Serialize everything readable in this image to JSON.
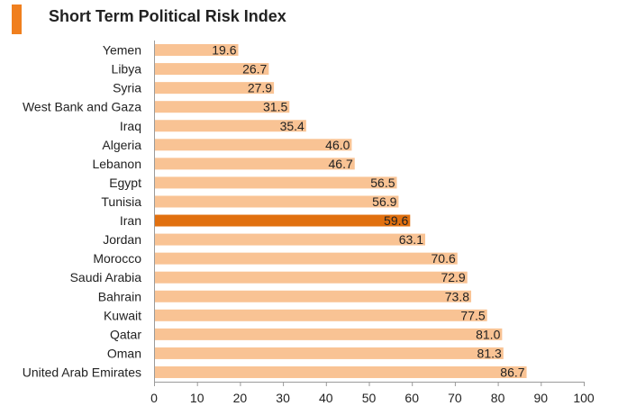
{
  "colors": {
    "accent": "#F07F1E",
    "bar": "#F9C394",
    "highlight": "#E1700F",
    "axis": "#9A9A9A",
    "text": "#222222"
  },
  "chart_data": {
    "type": "bar",
    "orientation": "horizontal",
    "title": "Short Term Political Risk Index",
    "categories": [
      "Yemen",
      "Libya",
      "Syria",
      "West Bank and Gaza",
      "Iraq",
      "Algeria",
      "Lebanon",
      "Egypt",
      "Tunisia",
      "Iran",
      "Jordan",
      "Morocco",
      "Saudi Arabia",
      "Bahrain",
      "Kuwait",
      "Qatar",
      "Oman",
      "United Arab Emirates"
    ],
    "values": [
      19.6,
      26.7,
      27.9,
      31.5,
      35.4,
      46.0,
      46.7,
      56.5,
      56.9,
      59.6,
      63.1,
      70.6,
      72.9,
      73.8,
      77.5,
      81.0,
      81.3,
      86.7
    ],
    "value_labels": [
      "19.6",
      "26.7",
      "27.9",
      "31.5",
      "35.4",
      "46.0",
      "46.7",
      "56.5",
      "56.9",
      "59.6",
      "63.1",
      "70.6",
      "72.9",
      "73.8",
      "77.5",
      "81.0",
      "81.3",
      "86.7"
    ],
    "highlight_category": "Iran",
    "xlim": [
      0,
      100
    ],
    "xticks": [
      0,
      10,
      20,
      30,
      40,
      50,
      60,
      70,
      80,
      90,
      100
    ],
    "xlabel": "",
    "ylabel": "",
    "grid": false,
    "legend": "none"
  }
}
